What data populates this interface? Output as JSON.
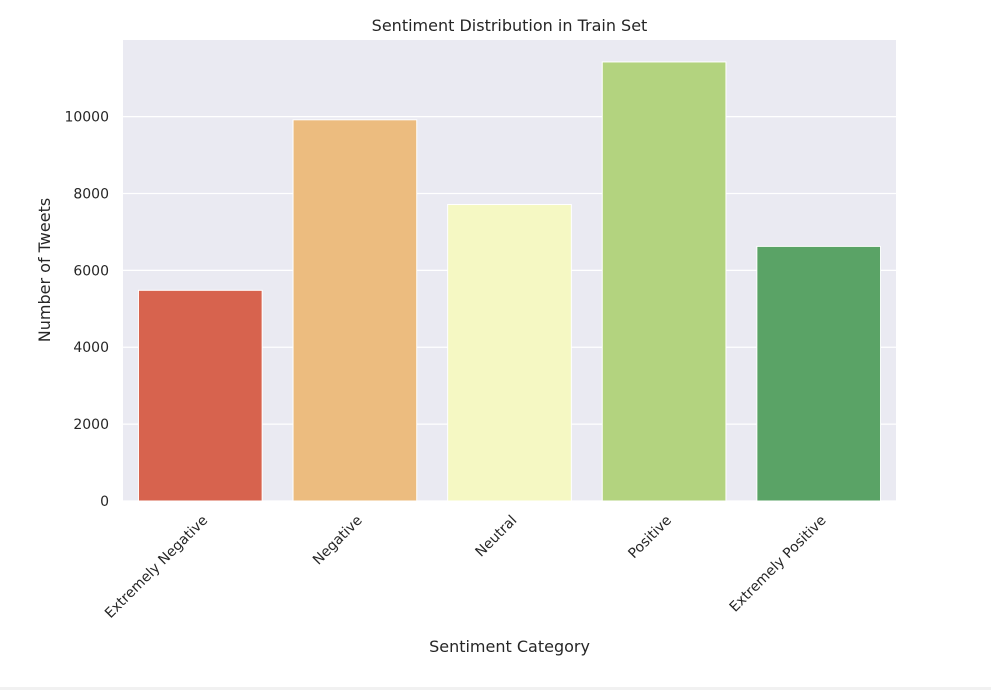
{
  "chart_data": {
    "type": "bar",
    "title": "Sentiment Distribution in Train Set",
    "xlabel": "Sentiment Category",
    "ylabel": "Number of Tweets",
    "categories": [
      "Extremely Negative",
      "Negative",
      "Neutral",
      "Positive",
      "Extremely Positive"
    ],
    "values": [
      5481,
      9917,
      7713,
      11422,
      6624
    ],
    "colors": [
      "#d7634e",
      "#ecbc7f",
      "#f5f8c3",
      "#b3d37f",
      "#5aa366"
    ],
    "ylim": [
      0,
      11993
    ],
    "yticks": [
      0,
      2000,
      4000,
      6000,
      8000,
      10000
    ],
    "grid": true,
    "background": "#eaeaf2",
    "legend": "none"
  }
}
